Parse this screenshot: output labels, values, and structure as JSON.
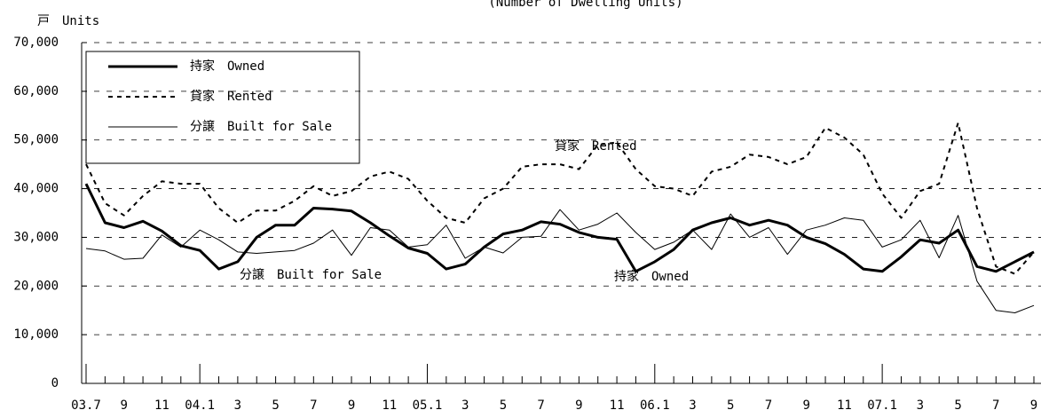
{
  "chart_data": {
    "type": "line",
    "title": "(Number of Dwelling Units)",
    "y_label": "戸　Units",
    "categories": [
      "03.7",
      null,
      "9",
      null,
      "11",
      null,
      "04.1",
      null,
      "3",
      null,
      "5",
      null,
      "7",
      null,
      "9",
      null,
      "11",
      null,
      "05.1",
      null,
      "3",
      null,
      "5",
      null,
      "7",
      null,
      "9",
      null,
      "11",
      null,
      "06.1",
      null,
      "3",
      null,
      "5",
      null,
      "7",
      null,
      "9",
      null,
      "11",
      null,
      "07.1",
      null,
      "3",
      null,
      "5",
      null,
      "7",
      null,
      "9"
    ],
    "series": [
      {
        "name": "持家　Owned",
        "color": "#000000",
        "line_style": "solid",
        "line_width": 3,
        "values": [
          41000,
          33000,
          32000,
          33300,
          31300,
          28300,
          27300,
          23500,
          25000,
          30000,
          32500,
          32500,
          36000,
          35800,
          35400,
          33000,
          30300,
          27800,
          26700,
          23500,
          24500,
          28000,
          30700,
          31500,
          33200,
          32700,
          31000,
          30000,
          29600,
          23000,
          25000,
          27500,
          31500,
          33000,
          34000,
          32500,
          33500,
          32500,
          30000,
          28700,
          26500,
          23500,
          23000,
          26000,
          29500,
          28800,
          31500,
          24000,
          23000,
          25000,
          27000
        ]
      },
      {
        "name": "貸家　Rented",
        "color": "#000000",
        "line_style": "dashed",
        "line_width": 2,
        "values": [
          45000,
          37000,
          34500,
          38500,
          41500,
          41000,
          41000,
          36000,
          33000,
          35500,
          35500,
          37500,
          40500,
          38500,
          39500,
          42500,
          43500,
          42000,
          37500,
          34000,
          33000,
          38000,
          40000,
          44500,
          45000,
          45000,
          44000,
          49000,
          49500,
          44000,
          40500,
          40000,
          38500,
          43500,
          44500,
          47000,
          46500,
          45000,
          46500,
          52500,
          50500,
          47000,
          39000,
          34000,
          39500,
          41000,
          53500,
          36000,
          24000,
          22500,
          27000
        ]
      },
      {
        "name": "分譲　Built for Sale",
        "color": "#000000",
        "line_style": "solid",
        "line_width": 1,
        "values": [
          27700,
          27200,
          25500,
          25700,
          30500,
          28000,
          31500,
          29500,
          27000,
          26700,
          27000,
          27300,
          28800,
          31500,
          26300,
          32000,
          31500,
          28000,
          28500,
          32500,
          25700,
          28000,
          26800,
          30000,
          30200,
          35700,
          31500,
          32700,
          35000,
          31000,
          27500,
          29000,
          31500,
          27500,
          34800,
          30000,
          32000,
          26500,
          31500,
          32500,
          34000,
          33500,
          28000,
          29500,
          33500,
          25800,
          34500,
          21000,
          15000,
          14500,
          16000
        ]
      }
    ],
    "annotations": [
      "貸家　Rented",
      "分譲　Built for Sale",
      "持家　Owned"
    ],
    "ylim": [
      0,
      70000
    ],
    "yticks": [
      0,
      {
        "value": 10000,
        "label": "10,000"
      },
      {
        "value": 20000,
        "label": "20,000"
      },
      {
        "value": 30000,
        "label": "30,000"
      },
      {
        "value": 40000,
        "label": "40,000"
      },
      {
        "value": 50000,
        "label": "50,000"
      },
      {
        "value": 60000,
        "label": "60,000"
      },
      {
        "value": 70000,
        "label": "70,000"
      }
    ],
    "grid": true,
    "legend": "upper left"
  }
}
